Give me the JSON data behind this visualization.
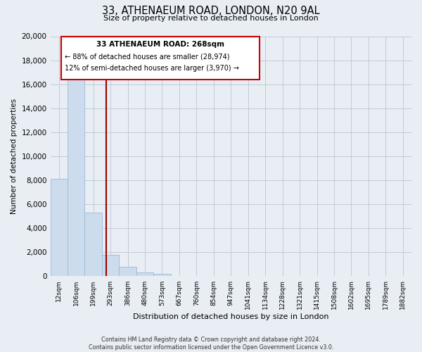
{
  "title": "33, ATHENAEUM ROAD, LONDON, N20 9AL",
  "subtitle": "Size of property relative to detached houses in London",
  "xlabel": "Distribution of detached houses by size in London",
  "ylabel": "Number of detached properties",
  "bar_labels": [
    "12sqm",
    "106sqm",
    "199sqm",
    "293sqm",
    "386sqm",
    "480sqm",
    "573sqm",
    "667sqm",
    "760sqm",
    "854sqm",
    "947sqm",
    "1041sqm",
    "1134sqm",
    "1228sqm",
    "1321sqm",
    "1415sqm",
    "1508sqm",
    "1602sqm",
    "1695sqm",
    "1789sqm",
    "1882sqm"
  ],
  "bar_values": [
    8100,
    16500,
    5300,
    1800,
    800,
    300,
    200,
    0,
    0,
    0,
    0,
    0,
    0,
    0,
    0,
    0,
    0,
    0,
    0,
    0,
    0
  ],
  "bar_color": "#ccdcec",
  "bar_edge_color": "#99bbdd",
  "ylim": [
    0,
    20000
  ],
  "yticks": [
    0,
    2000,
    4000,
    6000,
    8000,
    10000,
    12000,
    14000,
    16000,
    18000,
    20000
  ],
  "vline_color": "#990000",
  "annotation_title": "33 ATHENAEUM ROAD: 268sqm",
  "annotation_line1": "← 88% of detached houses are smaller (28,974)",
  "annotation_line2": "12% of semi-detached houses are larger (3,970) →",
  "annotation_box_color": "#ffffff",
  "annotation_box_edge": "#cc0000",
  "footer1": "Contains HM Land Registry data © Crown copyright and database right 2024.",
  "footer2": "Contains public sector information licensed under the Open Government Licence v3.0.",
  "bg_color": "#e8eef4",
  "plot_bg_color": "#e8eef4",
  "grid_color": "#c0ccd8"
}
